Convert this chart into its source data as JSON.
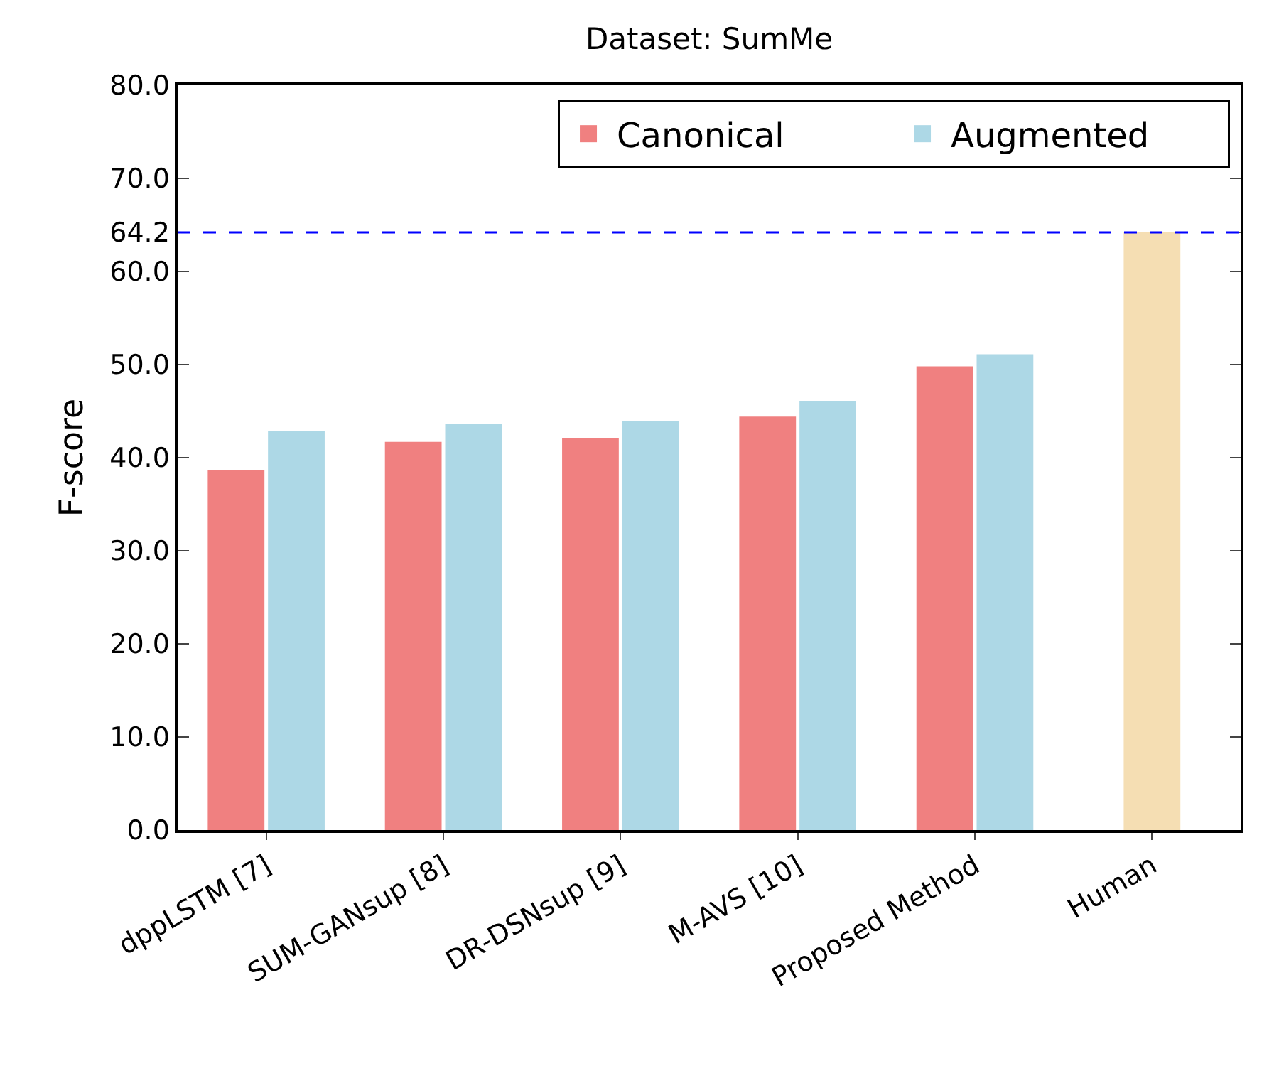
{
  "chart_data": {
    "type": "bar",
    "title": "Dataset: SumMe",
    "ylabel": "F-score",
    "categories": [
      "dppLSTM [7]",
      "SUM-GANsup [8]",
      "DR-DSNsup [9]",
      "M-AVS [10]",
      "Proposed Method",
      "Human"
    ],
    "series": [
      {
        "name": "Canonical",
        "color": "#f08080",
        "values": [
          38.7,
          41.7,
          42.1,
          44.4,
          49.8,
          null
        ]
      },
      {
        "name": "Augmented",
        "color": "#add8e6",
        "values": [
          42.9,
          43.6,
          43.9,
          46.1,
          51.1,
          null
        ]
      },
      {
        "color": "#f5deb3",
        "values": [
          null,
          null,
          null,
          null,
          null,
          64.2
        ]
      }
    ],
    "ylim": [
      0,
      80
    ],
    "yticks": [
      {
        "value": 0,
        "label": "0.0"
      },
      {
        "value": 10,
        "label": "10.0"
      },
      {
        "value": 20,
        "label": "20.0"
      },
      {
        "value": 30,
        "label": "30.0"
      },
      {
        "value": 40,
        "label": "40.0"
      },
      {
        "value": 50,
        "label": "50.0"
      },
      {
        "value": 60,
        "label": "60.0"
      },
      {
        "value": 64.2,
        "label": "64.2"
      },
      {
        "value": 70,
        "label": "70.0"
      },
      {
        "value": 80,
        "label": "80.0"
      }
    ],
    "ref_lines": [
      {
        "axis": "y",
        "value": 64.2,
        "color": "#0000ff",
        "line_style": "dashed"
      }
    ],
    "legend": "top right"
  }
}
